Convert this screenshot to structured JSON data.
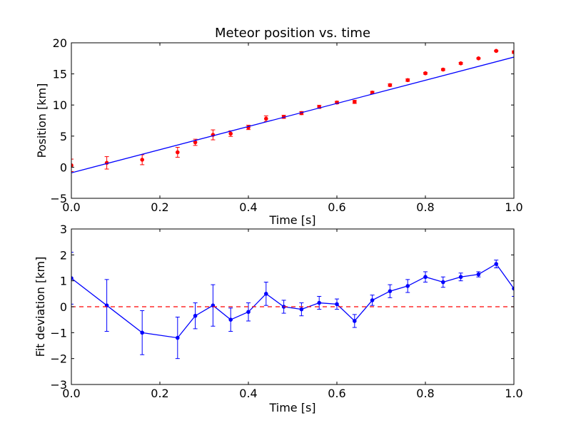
{
  "chart_data": [
    {
      "type": "scatter",
      "title": "Meteor position vs. time",
      "xlabel": "Time [s]",
      "ylabel": "Position [km]",
      "xlim": [
        0.0,
        1.0
      ],
      "ylim": [
        -5,
        20
      ],
      "xticks": [
        0.0,
        0.2,
        0.4,
        0.6,
        0.8,
        1.0
      ],
      "xtick_labels": [
        "0.0",
        "0.2",
        "0.4",
        "0.6",
        "0.8",
        "1.0"
      ],
      "yticks": [
        -5,
        0,
        5,
        10,
        15,
        20
      ],
      "ytick_labels": [
        "−5",
        "0",
        "5",
        "10",
        "15",
        "20"
      ],
      "grid": false,
      "series": [
        {
          "kind": "errorbar-points",
          "color": "#ff0000",
          "x": [
            0.0,
            0.08,
            0.16,
            0.24,
            0.28,
            0.32,
            0.36,
            0.4,
            0.44,
            0.48,
            0.52,
            0.56,
            0.6,
            0.64,
            0.68,
            0.72,
            0.76,
            0.8,
            0.84,
            0.88,
            0.92,
            0.96,
            1.0
          ],
          "y": [
            0.3,
            0.7,
            1.2,
            2.4,
            4.0,
            5.2,
            5.4,
            6.4,
            7.8,
            8.1,
            8.7,
            9.7,
            10.4,
            10.5,
            12.0,
            13.2,
            14.0,
            15.1,
            15.7,
            16.7,
            17.5,
            18.7,
            18.5
          ],
          "yerr": [
            1.0,
            1.0,
            0.8,
            0.8,
            0.5,
            0.8,
            0.45,
            0.35,
            0.45,
            0.25,
            0.25,
            0.25,
            0.2,
            0.25,
            0.2,
            0.2,
            0.2,
            0.15,
            0.15,
            0.15,
            0.1,
            0.1,
            0.2
          ]
        },
        {
          "kind": "fit-line",
          "color": "#0000ff",
          "x": [
            0.0,
            1.0
          ],
          "y": [
            -0.9,
            17.7
          ]
        }
      ]
    },
    {
      "type": "line",
      "title": "",
      "xlabel": "Time [s]",
      "ylabel": "Fit deviation [km]",
      "xlim": [
        0.0,
        1.0
      ],
      "ylim": [
        -3,
        3
      ],
      "xticks": [
        0.0,
        0.2,
        0.4,
        0.6,
        0.8,
        1.0
      ],
      "xtick_labels": [
        "0.0",
        "0.2",
        "0.4",
        "0.6",
        "0.8",
        "1.0"
      ],
      "yticks": [
        -3,
        -2,
        -1,
        0,
        1,
        2,
        3
      ],
      "ytick_labels": [
        "−3",
        "−2",
        "−1",
        "0",
        "1",
        "2",
        "3"
      ],
      "grid": false,
      "series": [
        {
          "kind": "errorbar-line",
          "color": "#0000ff",
          "x": [
            0.0,
            0.08,
            0.16,
            0.24,
            0.28,
            0.32,
            0.36,
            0.4,
            0.44,
            0.48,
            0.52,
            0.56,
            0.6,
            0.64,
            0.68,
            0.72,
            0.76,
            0.8,
            0.84,
            0.88,
            0.92,
            0.96,
            1.0
          ],
          "y": [
            1.1,
            0.05,
            -1.0,
            -1.2,
            -0.35,
            0.05,
            -0.5,
            -0.2,
            0.5,
            0.0,
            -0.1,
            0.15,
            0.1,
            -0.55,
            0.25,
            0.6,
            0.8,
            1.15,
            0.95,
            1.15,
            1.25,
            1.65,
            0.7
          ],
          "yerr": [
            1.0,
            1.0,
            0.85,
            0.8,
            0.5,
            0.8,
            0.45,
            0.35,
            0.45,
            0.25,
            0.25,
            0.25,
            0.2,
            0.25,
            0.2,
            0.25,
            0.25,
            0.2,
            0.2,
            0.15,
            0.1,
            0.15,
            0.3
          ]
        },
        {
          "kind": "reference-line",
          "color": "#ff0000",
          "dashed": true,
          "y": 0
        }
      ]
    }
  ]
}
